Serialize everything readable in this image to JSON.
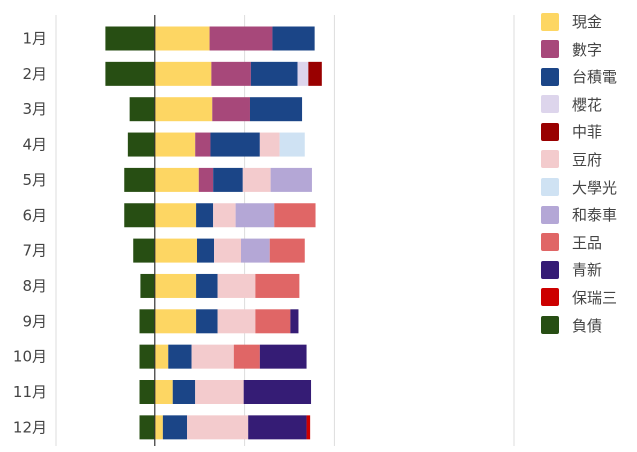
{
  "chart_data": {
    "type": "bar",
    "orientation": "horizontal",
    "stacked": true,
    "title": "",
    "xlabel": "",
    "ylabel": "",
    "xlim": [
      -110,
      400
    ],
    "grid": true,
    "legend_position": "right",
    "categories": [
      "1月",
      "2月",
      "3月",
      "4月",
      "5月",
      "6月",
      "7月",
      "8月",
      "9月",
      "10月",
      "11月",
      "12月"
    ],
    "series": [
      {
        "name": "現金",
        "color": "#FDD663",
        "values": [
          61,
          63,
          64,
          45,
          49,
          46,
          47,
          46,
          46,
          15,
          20,
          9
        ]
      },
      {
        "name": "數字",
        "color": "#A7487A",
        "values": [
          70,
          44,
          42,
          17,
          16,
          0,
          0,
          0,
          0,
          0,
          0,
          0
        ]
      },
      {
        "name": "台積電",
        "color": "#1B4587",
        "values": [
          47,
          52,
          58,
          55,
          33,
          19,
          19,
          24,
          24,
          26,
          25,
          27
        ]
      },
      {
        "name": "櫻花",
        "color": "#DDD5EC",
        "values": [
          0,
          12,
          0,
          0,
          0,
          0,
          0,
          0,
          0,
          0,
          0,
          0
        ]
      },
      {
        "name": "中菲",
        "color": "#990000",
        "values": [
          0,
          15,
          0,
          0,
          0,
          0,
          0,
          0,
          0,
          0,
          0,
          0
        ]
      },
      {
        "name": "豆府",
        "color": "#F3CBCD",
        "values": [
          0,
          0,
          0,
          22,
          31,
          25,
          30,
          42,
          42,
          47,
          54,
          68
        ]
      },
      {
        "name": "大學光",
        "color": "#CFE2F3",
        "values": [
          0,
          0,
          0,
          28,
          0,
          0,
          0,
          0,
          0,
          0,
          0,
          0
        ]
      },
      {
        "name": "和泰車",
        "color": "#B4A7D6",
        "values": [
          0,
          0,
          0,
          0,
          46,
          43,
          32,
          0,
          0,
          0,
          0,
          0
        ]
      },
      {
        "name": "王品",
        "color": "#E06666",
        "values": [
          0,
          0,
          0,
          0,
          0,
          46,
          39,
          49,
          39,
          29,
          0,
          0
        ]
      },
      {
        "name": "青新",
        "color": "#351C75",
        "values": [
          0,
          0,
          0,
          0,
          0,
          0,
          0,
          0,
          9,
          52,
          75,
          65
        ]
      },
      {
        "name": "保瑞三",
        "color": "#CC0000",
        "values": [
          0,
          0,
          0,
          0,
          0,
          0,
          0,
          0,
          0,
          0,
          0,
          4
        ]
      },
      {
        "name": "負債",
        "color": "#274E13",
        "values": [
          -55,
          -55,
          -28,
          -30,
          -34,
          -34,
          -24,
          -16,
          -17,
          -17,
          -17,
          -17
        ]
      }
    ]
  }
}
